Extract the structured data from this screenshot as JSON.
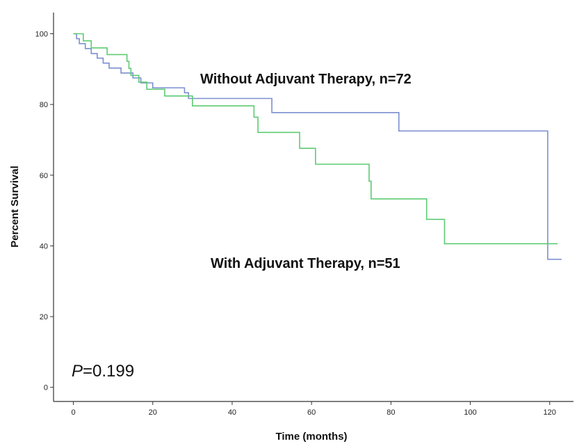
{
  "chart_data": {
    "type": "line",
    "step": true,
    "xlabel": "Time (months)",
    "ylabel": "Percent Survival",
    "xlim": [
      -5,
      126
    ],
    "ylim": [
      -4,
      106
    ],
    "xticks": [
      0,
      20,
      40,
      60,
      80,
      100,
      120
    ],
    "yticks": [
      0,
      20,
      40,
      60,
      80,
      100
    ],
    "grid": false,
    "series": [
      {
        "name": "Without Adjuvant Therapy, n=72",
        "color": "#7b8fd0",
        "points": [
          [
            0,
            100
          ],
          [
            0.8,
            98.6
          ],
          [
            1.5,
            97.2
          ],
          [
            3,
            95.8
          ],
          [
            4.5,
            94.4
          ],
          [
            6,
            93.1
          ],
          [
            7.5,
            91.7
          ],
          [
            9,
            90.3
          ],
          [
            12,
            88.9
          ],
          [
            14,
            88.9
          ],
          [
            15,
            87.5
          ],
          [
            17,
            86.1
          ],
          [
            20,
            84.7
          ],
          [
            25,
            84.7
          ],
          [
            28,
            83.3
          ],
          [
            29,
            81.7
          ],
          [
            30,
            81.7
          ],
          [
            50,
            77.7
          ],
          [
            70,
            77.7
          ],
          [
            82,
            72.5
          ],
          [
            100,
            72.5
          ],
          [
            119.5,
            36.2
          ],
          [
            123,
            36.2
          ]
        ]
      },
      {
        "name": "With Adjuvant Therapy, n=51",
        "color": "#5dcb72",
        "points": [
          [
            0,
            100
          ],
          [
            2.5,
            98
          ],
          [
            4.5,
            96
          ],
          [
            8.5,
            94.1
          ],
          [
            13.5,
            92.2
          ],
          [
            14,
            90.2
          ],
          [
            14.5,
            88.2
          ],
          [
            16.5,
            86.3
          ],
          [
            18.5,
            84.3
          ],
          [
            23,
            82.4
          ],
          [
            30,
            79.6
          ],
          [
            45,
            79.6
          ],
          [
            45.5,
            76.4
          ],
          [
            46.5,
            72.1
          ],
          [
            57,
            67.6
          ],
          [
            61,
            63.1
          ],
          [
            73.5,
            63.1
          ],
          [
            74.5,
            58.3
          ],
          [
            75,
            53.3
          ],
          [
            88,
            53.3
          ],
          [
            89,
            47.5
          ],
          [
            93.5,
            40.6
          ],
          [
            122,
            40.6
          ]
        ]
      }
    ],
    "annotations": {
      "without_label": "Without Adjuvant Therapy, n=72",
      "with_label": "With Adjuvant Therapy, n=51",
      "p_symbol": "P",
      "p_value": "=0.199"
    }
  }
}
